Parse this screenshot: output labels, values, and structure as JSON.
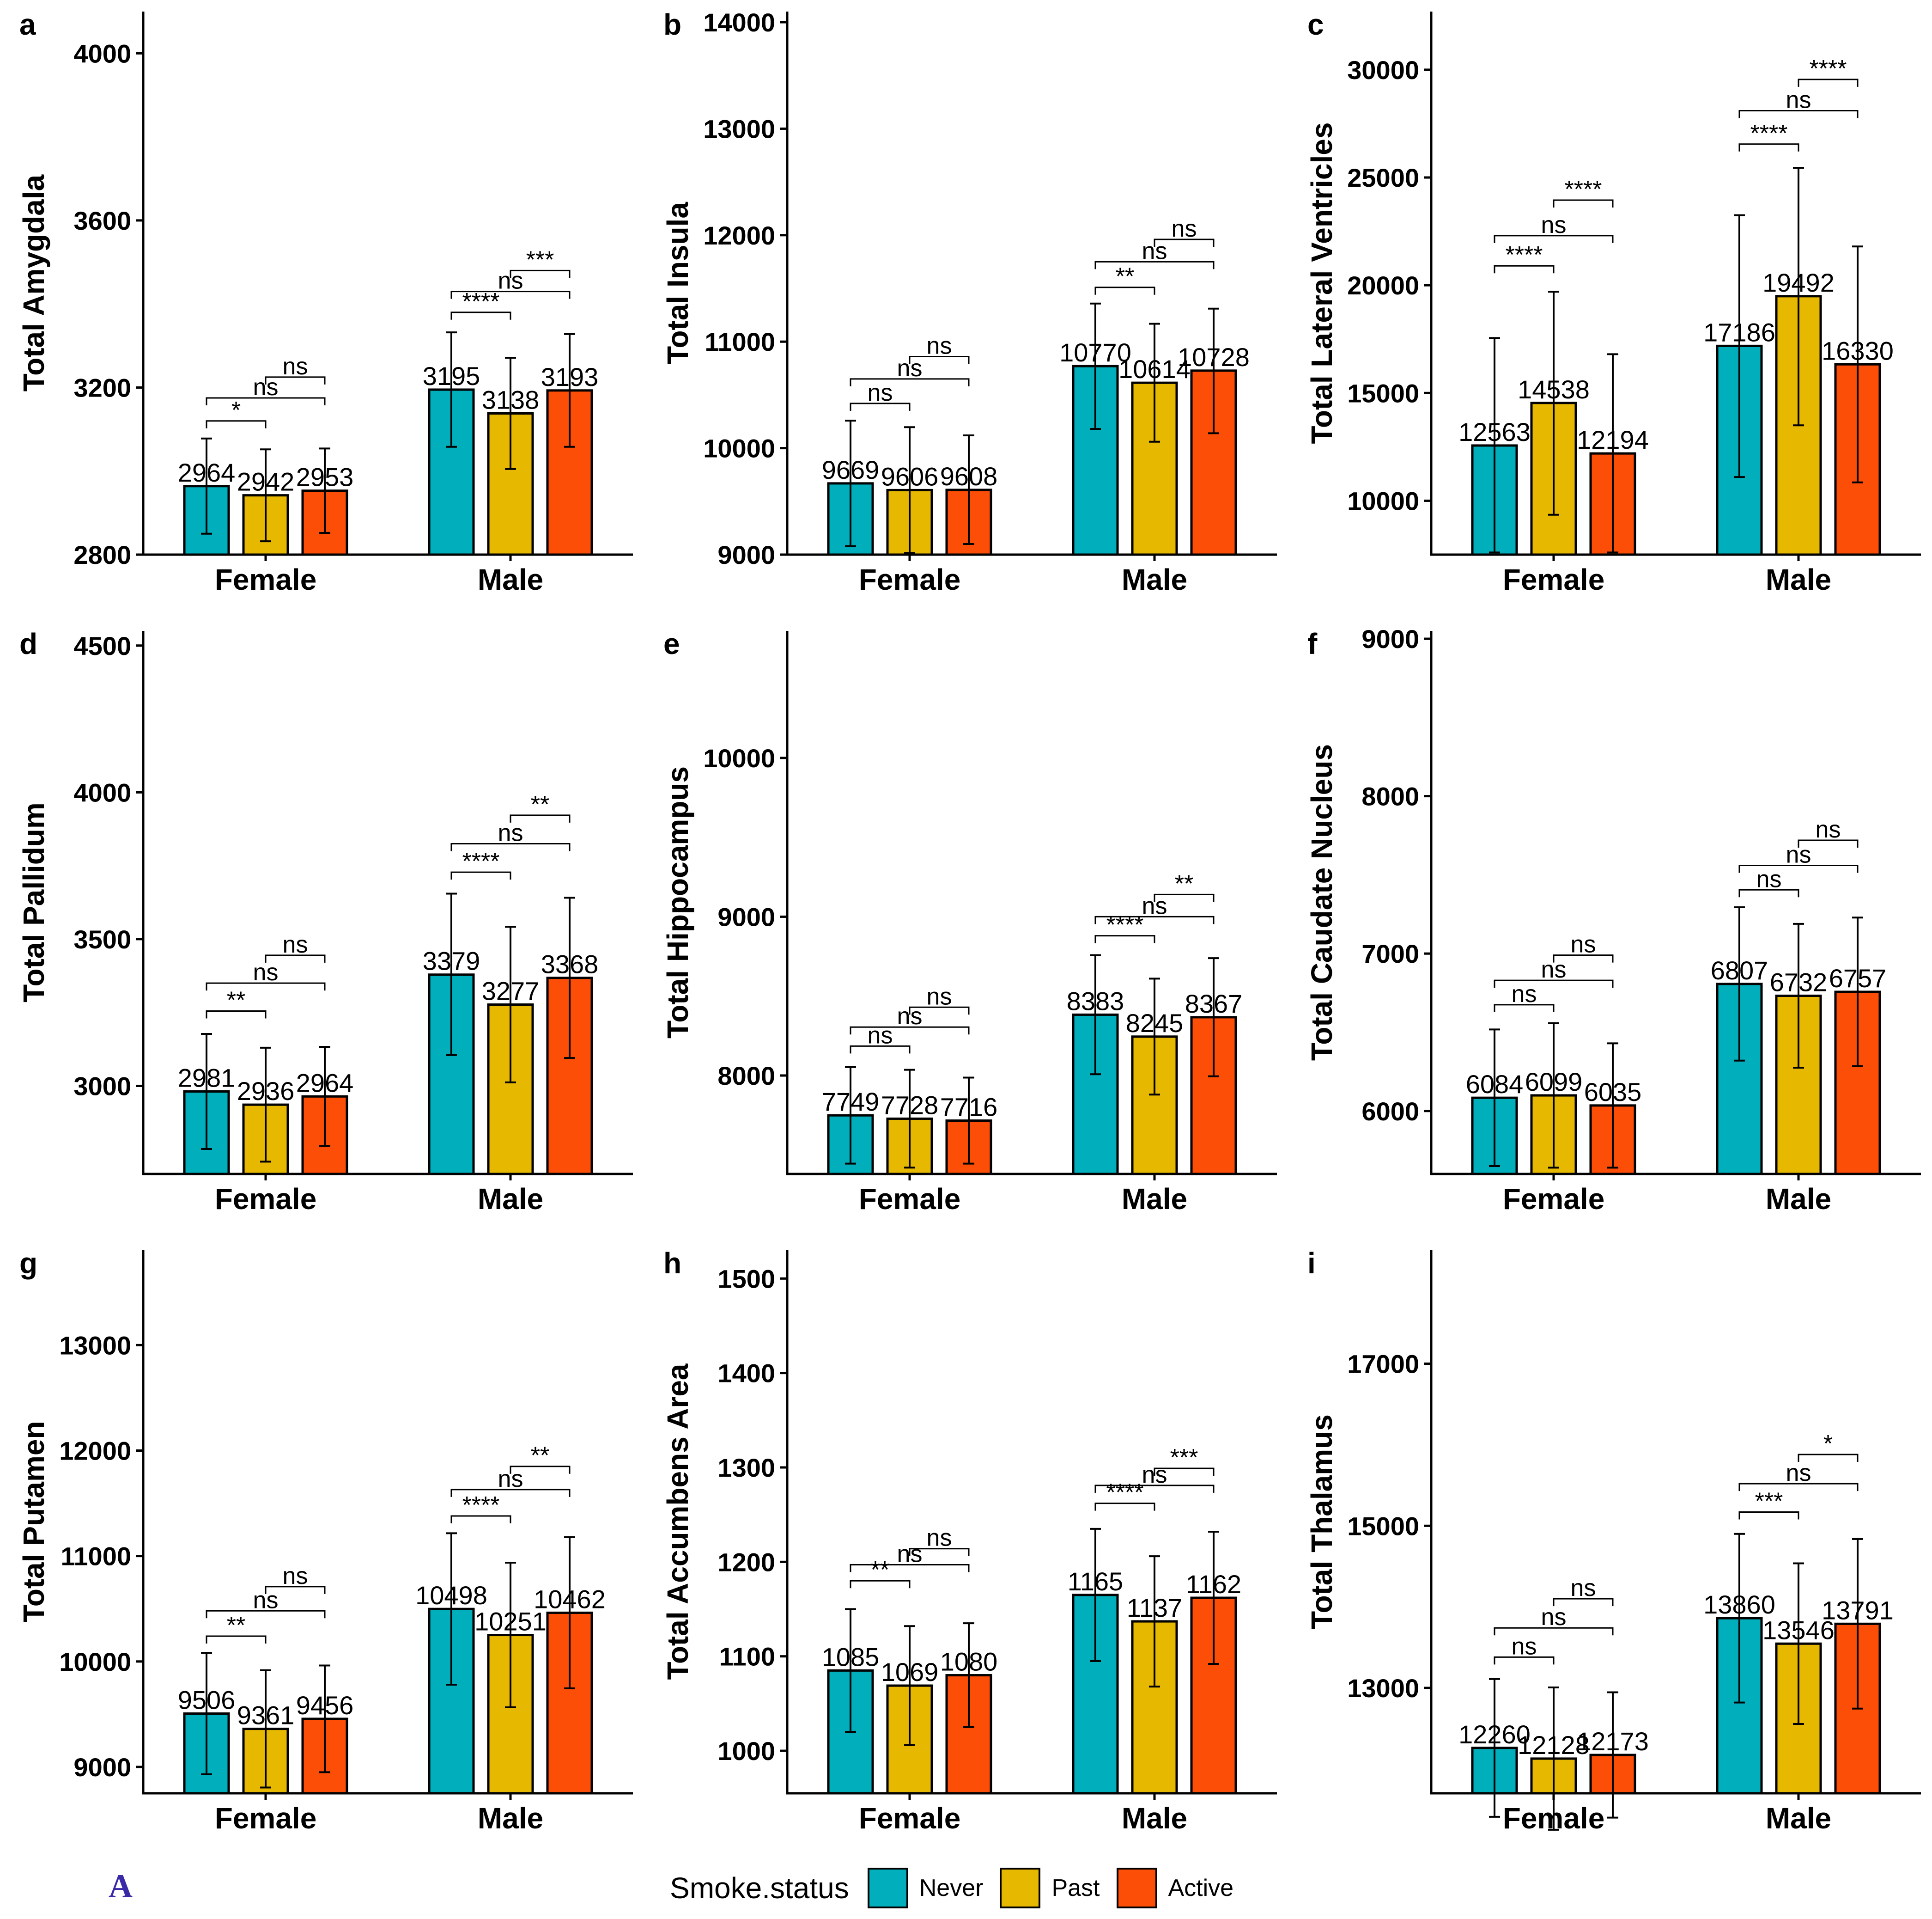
{
  "figure_tag": "A",
  "legend": {
    "title": "Smoke.status",
    "items": [
      {
        "label": "Never",
        "color": "#00AFBB"
      },
      {
        "label": "Past",
        "color": "#E7B800"
      },
      {
        "label": "Active",
        "color": "#FC4E07"
      }
    ]
  },
  "chart_data": [
    {
      "letter": "a",
      "type": "bar",
      "ylabel": "Total Amygdala",
      "categories": [
        "Female",
        "Male"
      ],
      "ylim": [
        2800,
        4100
      ],
      "yticks": [
        2800,
        3200,
        3600,
        4000
      ],
      "series": [
        {
          "name": "Never",
          "values": [
            2964,
            3195
          ]
        },
        {
          "name": "Past",
          "values": [
            2942,
            3138
          ]
        },
        {
          "name": "Active",
          "values": [
            2953,
            3193
          ]
        }
      ],
      "errors": [
        [
          [
            2850,
            3078
          ],
          [
            3058,
            3332
          ]
        ],
        [
          [
            2832,
            3052
          ],
          [
            3005,
            3271
          ]
        ],
        [
          [
            2852,
            3054
          ],
          [
            3058,
            3328
          ]
        ]
      ],
      "labels": [
        [
          "2964",
          "3195"
        ],
        [
          "2942",
          "3138"
        ],
        [
          "2953",
          "3193"
        ]
      ],
      "significance": [
        {
          "group": 0,
          "from": 0,
          "to": 1,
          "y": 3120,
          "text": "*"
        },
        {
          "group": 0,
          "from": 0,
          "to": 2,
          "y": 3175,
          "text": "ns"
        },
        {
          "group": 0,
          "from": 1,
          "to": 2,
          "y": 3225,
          "text": "ns"
        },
        {
          "group": 1,
          "from": 0,
          "to": 1,
          "y": 3380,
          "text": "****"
        },
        {
          "group": 1,
          "from": 0,
          "to": 2,
          "y": 3430,
          "text": "ns"
        },
        {
          "group": 1,
          "from": 1,
          "to": 2,
          "y": 3480,
          "text": "***"
        }
      ]
    },
    {
      "letter": "b",
      "type": "bar",
      "ylabel": "Total Insula",
      "categories": [
        "Female",
        "Male"
      ],
      "ylim": [
        9000,
        14100
      ],
      "yticks": [
        9000,
        10000,
        11000,
        12000,
        13000,
        14000
      ],
      "series": [
        {
          "name": "Never",
          "values": [
            9669,
            10770
          ]
        },
        {
          "name": "Past",
          "values": [
            9606,
            10614
          ]
        },
        {
          "name": "Active",
          "values": [
            9608,
            10728
          ]
        }
      ],
      "errors": [
        [
          [
            9080,
            10258
          ],
          [
            10180,
            11358
          ]
        ],
        [
          [
            9015,
            10197
          ],
          [
            10060,
            11168
          ]
        ],
        [
          [
            9100,
            10120
          ],
          [
            10140,
            11310
          ]
        ]
      ],
      "labels": [
        [
          "9669",
          "10770"
        ],
        [
          "9606",
          "10614"
        ],
        [
          "9608",
          "10728"
        ]
      ],
      "significance": [
        {
          "group": 0,
          "from": 0,
          "to": 1,
          "y": 10420,
          "text": "ns"
        },
        {
          "group": 0,
          "from": 0,
          "to": 2,
          "y": 10650,
          "text": "ns"
        },
        {
          "group": 0,
          "from": 1,
          "to": 2,
          "y": 10860,
          "text": "ns"
        },
        {
          "group": 1,
          "from": 0,
          "to": 1,
          "y": 11510,
          "text": "**"
        },
        {
          "group": 1,
          "from": 0,
          "to": 2,
          "y": 11750,
          "text": "ns"
        },
        {
          "group": 1,
          "from": 1,
          "to": 2,
          "y": 11960,
          "text": "ns"
        }
      ]
    },
    {
      "letter": "c",
      "type": "bar",
      "ylabel": "Total Lateral Ventricles",
      "categories": [
        "Female",
        "Male"
      ],
      "ylim": [
        7500,
        32700
      ],
      "yticks": [
        10000,
        15000,
        20000,
        25000,
        30000
      ],
      "series": [
        {
          "name": "Never",
          "values": [
            12563,
            17186
          ]
        },
        {
          "name": "Past",
          "values": [
            14538,
            19492
          ]
        },
        {
          "name": "Active",
          "values": [
            12194,
            16330
          ]
        }
      ],
      "errors": [
        [
          [
            7600,
            17550
          ],
          [
            11100,
            23250
          ]
        ],
        [
          [
            9350,
            19700
          ],
          [
            13500,
            25450
          ]
        ],
        [
          [
            7600,
            16800
          ],
          [
            10850,
            21800
          ]
        ]
      ],
      "labels": [
        [
          "12563",
          "17186"
        ],
        [
          "14538",
          "19492"
        ],
        [
          "12194",
          "16330"
        ]
      ],
      "significance": [
        {
          "group": 0,
          "from": 0,
          "to": 1,
          "y": 20900,
          "text": "****"
        },
        {
          "group": 0,
          "from": 0,
          "to": 2,
          "y": 22300,
          "text": "ns"
        },
        {
          "group": 0,
          "from": 1,
          "to": 2,
          "y": 23950,
          "text": "****"
        },
        {
          "group": 1,
          "from": 0,
          "to": 1,
          "y": 26550,
          "text": "****"
        },
        {
          "group": 1,
          "from": 0,
          "to": 2,
          "y": 28100,
          "text": "ns"
        },
        {
          "group": 1,
          "from": 1,
          "to": 2,
          "y": 29550,
          "text": "****"
        }
      ]
    },
    {
      "letter": "d",
      "type": "bar",
      "ylabel": "Total Pallidum",
      "categories": [
        "Female",
        "Male"
      ],
      "ylim": [
        2700,
        4550
      ],
      "yticks": [
        3000,
        3500,
        4000,
        4500
      ],
      "series": [
        {
          "name": "Never",
          "values": [
            2981,
            3379
          ]
        },
        {
          "name": "Past",
          "values": [
            2936,
            3277
          ]
        },
        {
          "name": "Active",
          "values": [
            2964,
            3368
          ]
        }
      ],
      "errors": [
        [
          [
            2785,
            3177
          ],
          [
            3105,
            3655
          ]
        ],
        [
          [
            2742,
            3130
          ],
          [
            3012,
            3542
          ]
        ],
        [
          [
            2795,
            3133
          ],
          [
            3095,
            3641
          ]
        ]
      ],
      "labels": [
        [
          "2981",
          "3379"
        ],
        [
          "2936",
          "3277"
        ],
        [
          "2964",
          "3368"
        ]
      ],
      "significance": [
        {
          "group": 0,
          "from": 0,
          "to": 1,
          "y": 3255,
          "text": "**"
        },
        {
          "group": 0,
          "from": 0,
          "to": 2,
          "y": 3350,
          "text": "ns"
        },
        {
          "group": 0,
          "from": 1,
          "to": 2,
          "y": 3445,
          "text": "ns"
        },
        {
          "group": 1,
          "from": 0,
          "to": 1,
          "y": 3728,
          "text": "****"
        },
        {
          "group": 1,
          "from": 0,
          "to": 2,
          "y": 3825,
          "text": "ns"
        },
        {
          "group": 1,
          "from": 1,
          "to": 2,
          "y": 3922,
          "text": "**"
        }
      ]
    },
    {
      "letter": "e",
      "type": "bar",
      "ylabel": "Total Hippocampus",
      "categories": [
        "Female",
        "Male"
      ],
      "ylim": [
        7380,
        10800
      ],
      "yticks": [
        8000,
        9000,
        10000
      ],
      "series": [
        {
          "name": "Never",
          "values": [
            7749,
            8383
          ]
        },
        {
          "name": "Past",
          "values": [
            7728,
            8245
          ]
        },
        {
          "name": "Active",
          "values": [
            7716,
            8367
          ]
        }
      ],
      "errors": [
        [
          [
            7445,
            8053
          ],
          [
            8008,
            8758
          ]
        ],
        [
          [
            7420,
            8036
          ],
          [
            7880,
            8610
          ]
        ],
        [
          [
            7445,
            7987
          ],
          [
            7995,
            8739
          ]
        ]
      ],
      "labels": [
        [
          "7749",
          "8383"
        ],
        [
          "7728",
          "8245"
        ],
        [
          "7716",
          "8367"
        ]
      ],
      "significance": [
        {
          "group": 0,
          "from": 0,
          "to": 1,
          "y": 8185,
          "text": "ns"
        },
        {
          "group": 0,
          "from": 0,
          "to": 2,
          "y": 8305,
          "text": "ns"
        },
        {
          "group": 0,
          "from": 1,
          "to": 2,
          "y": 8430,
          "text": "ns"
        },
        {
          "group": 1,
          "from": 0,
          "to": 1,
          "y": 8880,
          "text": "****"
        },
        {
          "group": 1,
          "from": 0,
          "to": 2,
          "y": 9000,
          "text": "ns"
        },
        {
          "group": 1,
          "from": 1,
          "to": 2,
          "y": 9140,
          "text": "**"
        }
      ]
    },
    {
      "letter": "f",
      "type": "bar",
      "ylabel": "Total Caudate Nucleus",
      "categories": [
        "Female",
        "Male"
      ],
      "ylim": [
        5600,
        9050
      ],
      "yticks": [
        6000,
        7000,
        8000,
        9000
      ],
      "series": [
        {
          "name": "Never",
          "values": [
            6084,
            6807
          ]
        },
        {
          "name": "Past",
          "values": [
            6099,
            6732
          ]
        },
        {
          "name": "Active",
          "values": [
            6035,
            6757
          ]
        }
      ],
      "errors": [
        [
          [
            5650,
            6518
          ],
          [
            6320,
            7294
          ]
        ],
        [
          [
            5640,
            6558
          ],
          [
            6275,
            7189
          ]
        ],
        [
          [
            5640,
            6430
          ],
          [
            6285,
            7229
          ]
        ]
      ],
      "labels": [
        [
          "6084",
          "6807"
        ],
        [
          "6099",
          "6732"
        ],
        [
          "6035",
          "6757"
        ]
      ],
      "significance": [
        {
          "group": 0,
          "from": 0,
          "to": 1,
          "y": 6675,
          "text": "ns"
        },
        {
          "group": 0,
          "from": 0,
          "to": 2,
          "y": 6830,
          "text": "ns"
        },
        {
          "group": 0,
          "from": 1,
          "to": 2,
          "y": 6990,
          "text": "ns"
        },
        {
          "group": 1,
          "from": 0,
          "to": 1,
          "y": 7405,
          "text": "ns"
        },
        {
          "group": 1,
          "from": 0,
          "to": 2,
          "y": 7560,
          "text": "ns"
        },
        {
          "group": 1,
          "from": 1,
          "to": 2,
          "y": 7720,
          "text": "ns"
        }
      ]
    },
    {
      "letter": "g",
      "type": "bar",
      "ylabel": "Total Putamen",
      "categories": [
        "Female",
        "Male"
      ],
      "ylim": [
        8750,
        13900
      ],
      "yticks": [
        9000,
        10000,
        11000,
        12000,
        13000
      ],
      "series": [
        {
          "name": "Never",
          "values": [
            9506,
            10498
          ]
        },
        {
          "name": "Past",
          "values": [
            9361,
            10251
          ]
        },
        {
          "name": "Active",
          "values": [
            9456,
            10462
          ]
        }
      ],
      "errors": [
        [
          [
            8930,
            10082
          ],
          [
            9780,
            11216
          ]
        ],
        [
          [
            8805,
            9917
          ],
          [
            9565,
            10937
          ]
        ],
        [
          [
            8950,
            9962
          ],
          [
            9745,
            11179
          ]
        ]
      ],
      "labels": [
        [
          "9506",
          "10498"
        ],
        [
          "9361",
          "10251"
        ],
        [
          "9456",
          "10462"
        ]
      ],
      "significance": [
        {
          "group": 0,
          "from": 0,
          "to": 1,
          "y": 10240,
          "text": "**"
        },
        {
          "group": 0,
          "from": 0,
          "to": 2,
          "y": 10480,
          "text": "ns"
        },
        {
          "group": 0,
          "from": 1,
          "to": 2,
          "y": 10710,
          "text": "ns"
        },
        {
          "group": 1,
          "from": 0,
          "to": 1,
          "y": 11380,
          "text": "****"
        },
        {
          "group": 1,
          "from": 0,
          "to": 2,
          "y": 11630,
          "text": "ns"
        },
        {
          "group": 1,
          "from": 1,
          "to": 2,
          "y": 11850,
          "text": "**"
        }
      ]
    },
    {
      "letter": "h",
      "type": "bar",
      "ylabel": "Total Accumbens Area",
      "categories": [
        "Female",
        "Male"
      ],
      "ylim": [
        955,
        1530
      ],
      "yticks": [
        1000,
        1100,
        1200,
        1300,
        1400,
        1500
      ],
      "series": [
        {
          "name": "Never",
          "values": [
            1085,
            1165
          ]
        },
        {
          "name": "Past",
          "values": [
            1069,
            1137
          ]
        },
        {
          "name": "Active",
          "values": [
            1080,
            1162
          ]
        }
      ],
      "errors": [
        [
          [
            1020,
            1150
          ],
          [
            1095,
            1235
          ]
        ],
        [
          [
            1006,
            1132
          ],
          [
            1068,
            1206
          ]
        ],
        [
          [
            1025,
            1135
          ],
          [
            1092,
            1232
          ]
        ]
      ],
      "labels": [
        [
          "1085",
          "1165"
        ],
        [
          "1069",
          "1137"
        ],
        [
          "1080",
          "1162"
        ]
      ],
      "significance": [
        {
          "group": 0,
          "from": 0,
          "to": 1,
          "y": 1180,
          "text": "**"
        },
        {
          "group": 0,
          "from": 0,
          "to": 2,
          "y": 1197,
          "text": "ns"
        },
        {
          "group": 0,
          "from": 1,
          "to": 2,
          "y": 1214,
          "text": "ns"
        },
        {
          "group": 1,
          "from": 0,
          "to": 1,
          "y": 1262,
          "text": "****"
        },
        {
          "group": 1,
          "from": 0,
          "to": 2,
          "y": 1281,
          "text": "ns"
        },
        {
          "group": 1,
          "from": 1,
          "to": 2,
          "y": 1299,
          "text": "***"
        }
      ]
    },
    {
      "letter": "i",
      "type": "bar",
      "ylabel": "Total Thalamus",
      "categories": [
        "Female",
        "Male"
      ],
      "ylim": [
        11700,
        18400
      ],
      "yticks": [
        13000,
        15000,
        17000
      ],
      "series": [
        {
          "name": "Never",
          "values": [
            12260,
            13860
          ]
        },
        {
          "name": "Past",
          "values": [
            12128,
            13546
          ]
        },
        {
          "name": "Active",
          "values": [
            12173,
            13791
          ]
        }
      ],
      "errors": [
        [
          [
            11410,
            13110
          ],
          [
            12820,
            14900
          ]
        ],
        [
          [
            11250,
            13006
          ],
          [
            12555,
            14537
          ]
        ],
        [
          [
            11400,
            12946
          ],
          [
            12745,
            14837
          ]
        ]
      ],
      "labels": [
        [
          "12260",
          "13860"
        ],
        [
          "12128",
          "13546"
        ],
        [
          "12173",
          "13791"
        ]
      ],
      "significance": [
        {
          "group": 0,
          "from": 0,
          "to": 1,
          "y": 13380,
          "text": "ns"
        },
        {
          "group": 0,
          "from": 0,
          "to": 2,
          "y": 13740,
          "text": "ns"
        },
        {
          "group": 0,
          "from": 1,
          "to": 2,
          "y": 14100,
          "text": "ns"
        },
        {
          "group": 1,
          "from": 0,
          "to": 1,
          "y": 15170,
          "text": "***"
        },
        {
          "group": 1,
          "from": 0,
          "to": 2,
          "y": 15520,
          "text": "ns"
        },
        {
          "group": 1,
          "from": 1,
          "to": 2,
          "y": 15880,
          "text": "*"
        }
      ]
    }
  ]
}
